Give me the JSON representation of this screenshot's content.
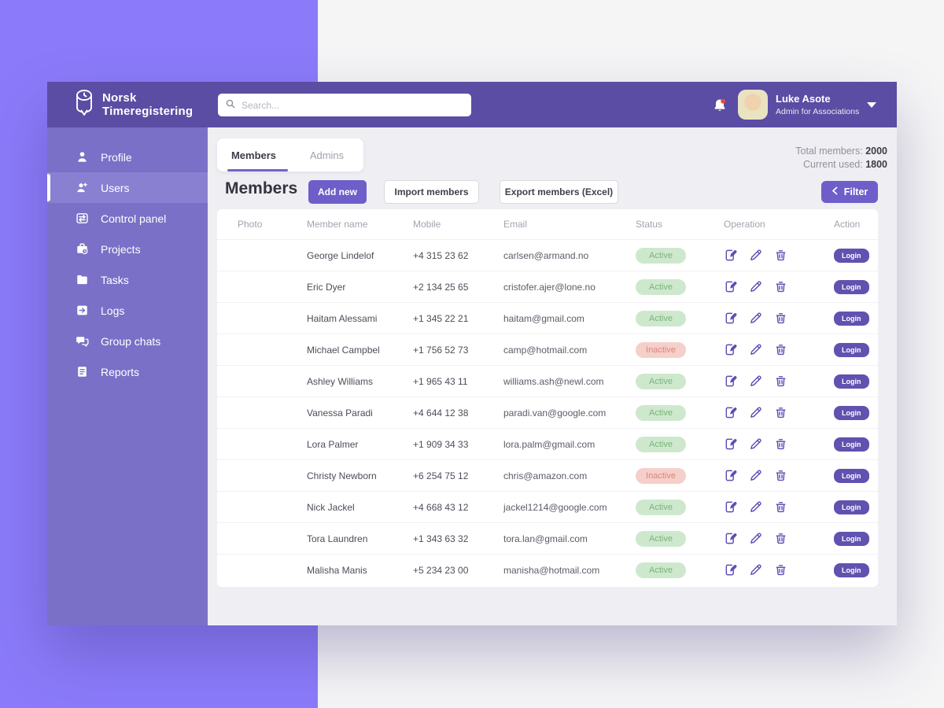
{
  "brand": {
    "line1": "Norsk",
    "line2": "Timeregistering"
  },
  "topbar": {
    "search_placeholder": "Search...",
    "user_name": "Luke Asote",
    "user_role": "Admin for Associations"
  },
  "sidebar": {
    "items": [
      {
        "id": "profile",
        "label": "Profile",
        "icon": "profile-icon",
        "active": false
      },
      {
        "id": "users",
        "label": "Users",
        "icon": "users-icon",
        "active": true
      },
      {
        "id": "control-panel",
        "label": "Control panel",
        "icon": "control-panel-icon",
        "active": false
      },
      {
        "id": "projects",
        "label": "Projects",
        "icon": "projects-icon",
        "active": false
      },
      {
        "id": "tasks",
        "label": "Tasks",
        "icon": "tasks-icon",
        "active": false
      },
      {
        "id": "logs",
        "label": "Logs",
        "icon": "logs-icon",
        "active": false
      },
      {
        "id": "group-chats",
        "label": "Group chats",
        "icon": "group-chats-icon",
        "active": false
      },
      {
        "id": "reports",
        "label": "Reports",
        "icon": "reports-icon",
        "active": false
      }
    ]
  },
  "tabs": [
    {
      "label": "Members",
      "active": true
    },
    {
      "label": "Admins",
      "active": false
    }
  ],
  "stats": {
    "total_label": "Total members:",
    "total_value": "2000",
    "used_label": "Current used:",
    "used_value": "1800"
  },
  "toolbar": {
    "title": "Members",
    "add_new": "Add new",
    "import": "Import members",
    "export": "Export members (Excel)",
    "filter": "Filter"
  },
  "table": {
    "headers": [
      "Photo",
      "Member name",
      "Mobile",
      "Email",
      "Status",
      "Operation",
      "Action"
    ],
    "login_label": "Login",
    "rows": [
      {
        "name": "George Lindelof",
        "mobile": "+4 315 23 62",
        "email": "carlsen@armand.no",
        "status": "Active",
        "avatar": {
          "bg": "#1e1e1e",
          "fg": "#c9c9c9"
        }
      },
      {
        "name": "Eric Dyer",
        "mobile": "+2 134 25 65",
        "email": "cristofer.ajer@lone.no",
        "status": "Active",
        "avatar": {
          "bg": "#cfc9dc",
          "fg": "#e6c3a0"
        }
      },
      {
        "name": "Haitam Alessami",
        "mobile": "+1 345 22 21",
        "email": "haitam@gmail.com",
        "status": "Active",
        "avatar": {
          "bg": "#d9e2e8",
          "fg": "#e4bd9d"
        }
      },
      {
        "name": "Michael Campbel",
        "mobile": "+1 756 52 73",
        "email": "camp@hotmail.com",
        "status": "Inactive",
        "avatar": {
          "bg": "#17100c",
          "fg": "#8a5a38"
        }
      },
      {
        "name": "Ashley Williams",
        "mobile": "+1 965 43 11",
        "email": "williams.ash@newl.com",
        "status": "Active",
        "avatar": {
          "bg": "#ddd8d3",
          "fg": "#e9c9ae"
        }
      },
      {
        "name": "Vanessa Paradi",
        "mobile": "+4 644 12 38",
        "email": "paradi.van@google.com",
        "status": "Active",
        "avatar": {
          "bg": "#9db6ba",
          "fg": "#e7c2a6"
        }
      },
      {
        "name": "Lora Palmer",
        "mobile": "+1 909 34 33",
        "email": "lora.palm@gmail.com",
        "status": "Active",
        "avatar": {
          "bg": "#6d5143",
          "fg": "#caa183"
        }
      },
      {
        "name": "Christy Newborn",
        "mobile": "+6 254 75 12",
        "email": "chris@amazon.com",
        "status": "Inactive",
        "avatar": {
          "bg": "#5e8fb8",
          "fg": "#d9b277"
        }
      },
      {
        "name": "Nick Jackel",
        "mobile": "+4 668 43 12",
        "email": "jackel1214@google.com",
        "status": "Active",
        "avatar": {
          "bg": "#b5b1ad",
          "fg": "#d2a886"
        }
      },
      {
        "name": "Tora Laundren",
        "mobile": "+1 343 63 32",
        "email": "tora.lan@gmail.com",
        "status": "Active",
        "avatar": {
          "bg": "#b55a4a",
          "fg": "#e3c083"
        }
      },
      {
        "name": "Malisha Manis",
        "mobile": "+5 234 23 00",
        "email": "manisha@hotmail.com",
        "status": "Active",
        "avatar": {
          "bg": "#52704f",
          "fg": "#b9aec6"
        }
      }
    ]
  },
  "colors": {
    "accent_purple": "#6e5ec9",
    "topbar_purple": "#5a4da3",
    "sidebar_purple": "#7b70c7",
    "page_purple": "#8b7bfa",
    "active_badge_bg": "#cee8cd",
    "active_badge_text": "#79b47b",
    "inactive_badge_bg": "#f5cfca",
    "inactive_badge_text": "#df837a"
  }
}
